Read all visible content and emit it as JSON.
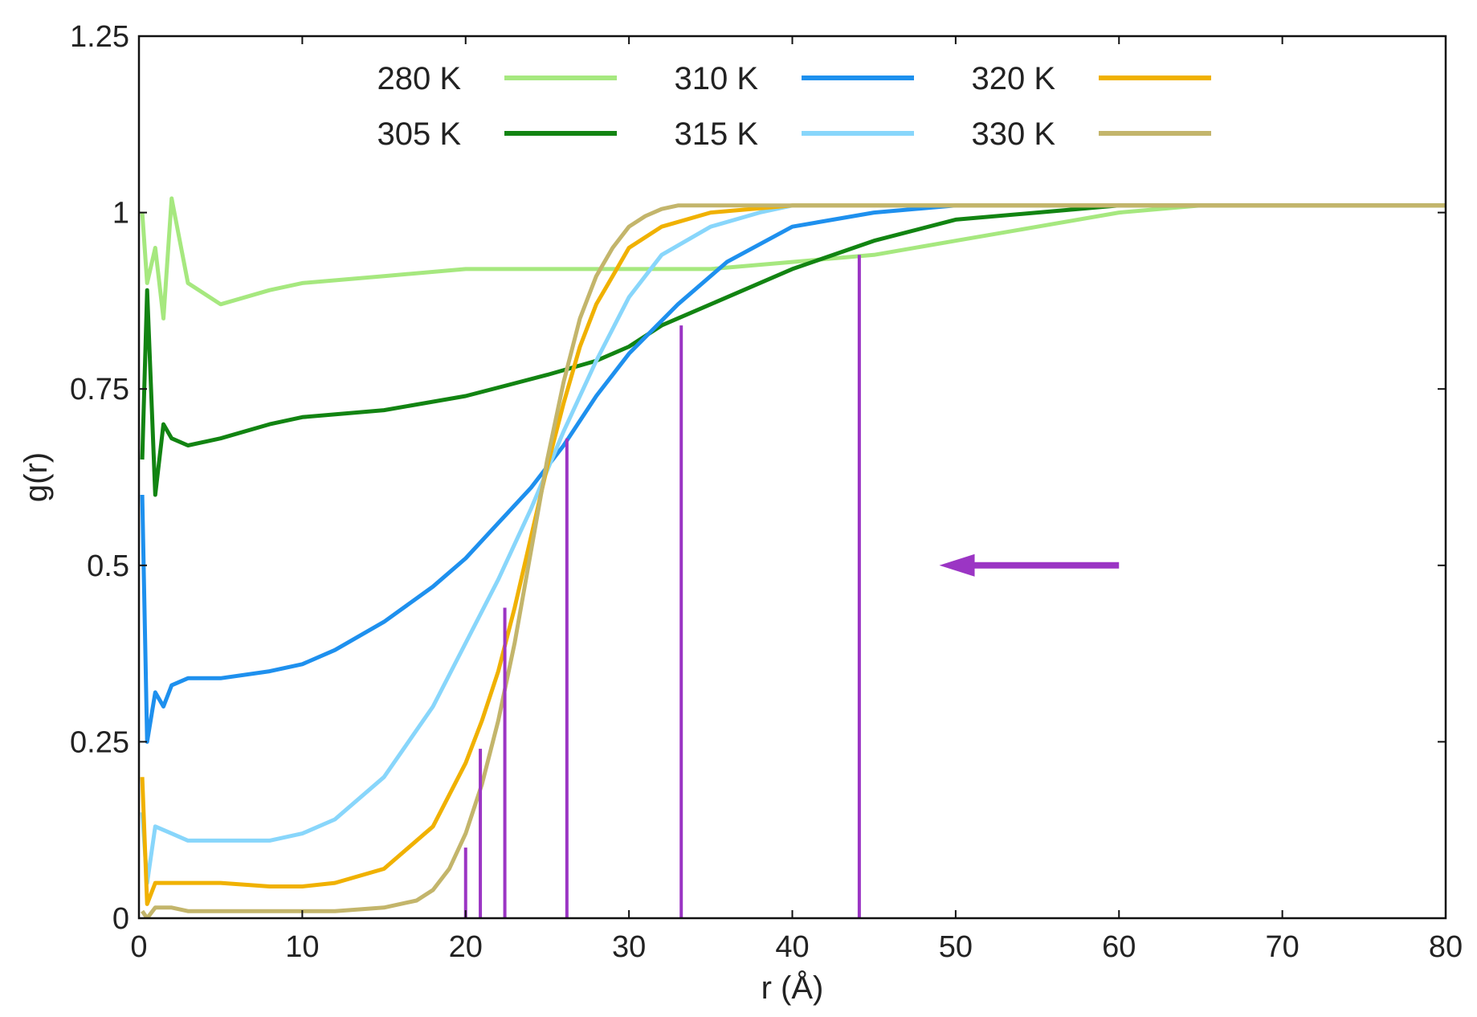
{
  "chart_data": {
    "type": "line",
    "xlabel": "r (Å)",
    "ylabel": "g(r)",
    "xlim": [
      0,
      80
    ],
    "ylim": [
      0,
      1.25
    ],
    "x_ticks": [
      0,
      10,
      20,
      30,
      40,
      50,
      60,
      70,
      80
    ],
    "x_tick_labels": [
      "0",
      "10",
      "20",
      "30",
      "40",
      "50",
      "60",
      "70",
      "80"
    ],
    "y_ticks": [
      0,
      0.25,
      0.5,
      0.75,
      1,
      1.25
    ],
    "y_tick_labels": [
      "0",
      "0.25",
      "0.5",
      "0.75",
      "1",
      "1.25"
    ],
    "grid": false,
    "legend_position": "top",
    "series": [
      {
        "name": "280 K",
        "color": "#a6e87f",
        "x": [
          0.2,
          0.5,
          1,
          1.5,
          2,
          3,
          5,
          8,
          10,
          15,
          20,
          25,
          30,
          35,
          40,
          45,
          50,
          55,
          60,
          65,
          70,
          75,
          80
        ],
        "y": [
          1.0,
          0.9,
          0.95,
          0.85,
          1.02,
          0.9,
          0.87,
          0.89,
          0.9,
          0.91,
          0.92,
          0.92,
          0.92,
          0.92,
          0.93,
          0.94,
          0.96,
          0.98,
          1.0,
          1.01,
          1.01,
          1.01,
          1.01
        ]
      },
      {
        "name": "305 K",
        "color": "#128412",
        "x": [
          0.2,
          0.5,
          1,
          1.5,
          2,
          3,
          5,
          8,
          10,
          15,
          20,
          25,
          28,
          30,
          32,
          35,
          40,
          45,
          50,
          55,
          60,
          65,
          70,
          75,
          80
        ],
        "y": [
          0.65,
          0.89,
          0.6,
          0.7,
          0.68,
          0.67,
          0.68,
          0.7,
          0.71,
          0.72,
          0.74,
          0.77,
          0.79,
          0.81,
          0.84,
          0.87,
          0.92,
          0.96,
          0.99,
          1.0,
          1.01,
          1.01,
          1.01,
          1.01,
          1.01
        ]
      },
      {
        "name": "310 K",
        "color": "#1e90ee",
        "x": [
          0.2,
          0.5,
          1,
          1.5,
          2,
          3,
          5,
          8,
          10,
          12,
          15,
          18,
          20,
          22,
          24,
          26,
          28,
          30,
          33,
          36,
          40,
          45,
          50,
          55,
          60,
          70,
          80
        ],
        "y": [
          0.6,
          0.25,
          0.32,
          0.3,
          0.33,
          0.34,
          0.34,
          0.35,
          0.36,
          0.38,
          0.42,
          0.47,
          0.51,
          0.56,
          0.61,
          0.67,
          0.74,
          0.8,
          0.87,
          0.93,
          0.98,
          1.0,
          1.01,
          1.01,
          1.01,
          1.01,
          1.01
        ]
      },
      {
        "name": "315 K",
        "color": "#88d6fb",
        "x": [
          0.2,
          0.5,
          1,
          2,
          3,
          5,
          8,
          10,
          12,
          15,
          18,
          20,
          22,
          24,
          26,
          28,
          30,
          32,
          35,
          38,
          40,
          45,
          50,
          60,
          70,
          80
        ],
        "y": [
          0.15,
          0.05,
          0.13,
          0.12,
          0.11,
          0.11,
          0.11,
          0.12,
          0.14,
          0.2,
          0.3,
          0.39,
          0.48,
          0.58,
          0.69,
          0.79,
          0.88,
          0.94,
          0.98,
          1.0,
          1.01,
          1.01,
          1.01,
          1.01,
          1.01,
          1.01
        ]
      },
      {
        "name": "320 K",
        "color": "#f0b100",
        "x": [
          0.2,
          0.5,
          1,
          2,
          3,
          5,
          8,
          10,
          12,
          15,
          18,
          20,
          21,
          22,
          23,
          24,
          25,
          26,
          27,
          28,
          29,
          30,
          32,
          35,
          40,
          50,
          60,
          70,
          80
        ],
        "y": [
          0.2,
          0.02,
          0.05,
          0.05,
          0.05,
          0.05,
          0.045,
          0.045,
          0.05,
          0.07,
          0.13,
          0.22,
          0.28,
          0.35,
          0.44,
          0.54,
          0.64,
          0.73,
          0.81,
          0.87,
          0.91,
          0.95,
          0.98,
          1.0,
          1.01,
          1.01,
          1.01,
          1.01,
          1.01
        ]
      },
      {
        "name": "330 K",
        "color": "#c3b56b",
        "x": [
          0.2,
          0.5,
          1,
          2,
          3,
          5,
          8,
          10,
          12,
          15,
          17,
          18,
          19,
          20,
          21,
          22,
          23,
          24,
          25,
          26,
          27,
          28,
          29,
          30,
          31,
          32,
          33,
          35,
          40,
          50,
          60,
          70,
          80
        ],
        "y": [
          0.01,
          0.0,
          0.015,
          0.015,
          0.01,
          0.01,
          0.01,
          0.01,
          0.01,
          0.015,
          0.025,
          0.04,
          0.07,
          0.12,
          0.19,
          0.28,
          0.39,
          0.52,
          0.65,
          0.76,
          0.85,
          0.91,
          0.95,
          0.98,
          0.995,
          1.005,
          1.01,
          1.01,
          1.01,
          1.01,
          1.01,
          1.01,
          1.01
        ]
      }
    ],
    "annotations": {
      "vertical_lines": [
        {
          "x": 20.0,
          "y_top": 0.1
        },
        {
          "x": 20.9,
          "y_top": 0.24
        },
        {
          "x": 22.4,
          "y_top": 0.44
        },
        {
          "x": 26.2,
          "y_top": 0.68
        },
        {
          "x": 33.2,
          "y_top": 0.84
        },
        {
          "x": 44.1,
          "y_top": 0.94
        }
      ],
      "vertical_line_color": "#9b35c4",
      "arrow": {
        "x_start": 60,
        "x_end": 49,
        "y": 0.5,
        "color": "#9b35c4"
      }
    }
  }
}
